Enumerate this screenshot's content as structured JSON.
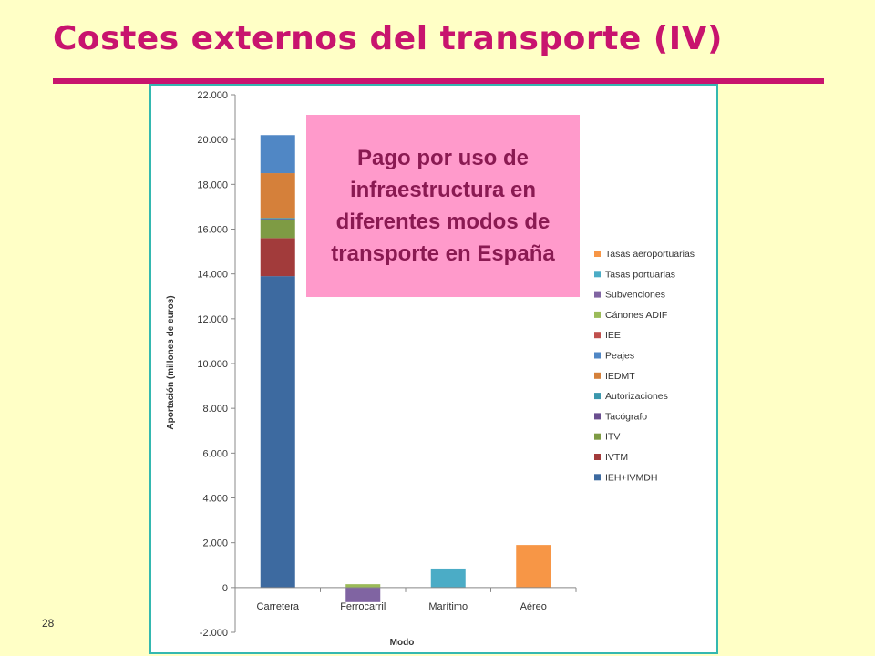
{
  "slide": {
    "title": "Costes externos del transporte (IV)",
    "callout": "Pago por uso de infraestructura en diferentes modos de transporte en España",
    "number": "28",
    "accent_color": "#c8146e",
    "background_color": "#ffffc6",
    "frame_color": "#34b8b0",
    "callout_color": "#ff9acb"
  },
  "chart_data": {
    "type": "bar",
    "stacked": true,
    "title": "",
    "xlabel": "Modo",
    "ylabel": "Aportación (millones de euros)",
    "ylim": [
      -2000,
      22000
    ],
    "yticks": [
      -2000,
      0,
      2000,
      4000,
      6000,
      8000,
      10000,
      12000,
      14000,
      16000,
      18000,
      20000,
      22000
    ],
    "ytick_labels": [
      "-2.000",
      "0",
      "2.000",
      "4.000",
      "6.000",
      "8.000",
      "10.000",
      "12.000",
      "14.000",
      "16.000",
      "18.000",
      "20.000",
      "22.000"
    ],
    "categories": [
      "Carretera",
      "Ferrocarril",
      "Marítimo",
      "Aéreo"
    ],
    "grid": false,
    "legend_position": "right",
    "series": [
      {
        "name": "IEH+IVMDH",
        "color": "#3d6aa0",
        "values": [
          13900,
          0,
          0,
          0
        ]
      },
      {
        "name": "IVTM",
        "color": "#a23b3b",
        "values": [
          1700,
          0,
          0,
          0
        ]
      },
      {
        "name": "ITV",
        "color": "#7e9b44",
        "values": [
          800,
          0,
          0,
          0
        ]
      },
      {
        "name": "Tacógrafo",
        "color": "#6a4e8f",
        "values": [
          50,
          0,
          0,
          0
        ]
      },
      {
        "name": "Autorizaciones",
        "color": "#3b97ad",
        "values": [
          50,
          0,
          0,
          0
        ]
      },
      {
        "name": "IEDMT",
        "color": "#d5803a",
        "values": [
          2000,
          0,
          0,
          0
        ]
      },
      {
        "name": "Peajes",
        "color": "#5087c5",
        "values": [
          1700,
          0,
          0,
          0
        ]
      },
      {
        "name": "IEE",
        "color": "#c0504d",
        "values": [
          0,
          0,
          0,
          0
        ]
      },
      {
        "name": "Cánones ADIF",
        "color": "#9bbb59",
        "values": [
          0,
          150,
          0,
          0
        ]
      },
      {
        "name": "Subvenciones",
        "color": "#8064a2",
        "values": [
          0,
          -650,
          0,
          0
        ]
      },
      {
        "name": "Tasas portuarias",
        "color": "#4bacc6",
        "values": [
          0,
          0,
          850,
          0
        ]
      },
      {
        "name": "Tasas aeroportuarias",
        "color": "#f79646",
        "values": [
          0,
          0,
          0,
          1900
        ]
      }
    ],
    "legend_order": [
      "Tasas aeroportuarias",
      "Tasas portuarias",
      "Subvenciones",
      "Cánones ADIF",
      "IEE",
      "Peajes",
      "IEDMT",
      "Autorizaciones",
      "Tacógrafo",
      "ITV",
      "IVTM",
      "IEH+IVMDH"
    ]
  }
}
